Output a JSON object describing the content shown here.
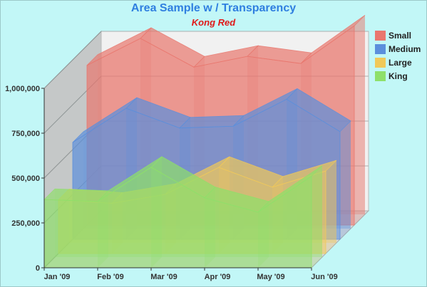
{
  "chart_data": {
    "type": "area",
    "title": "Area Sample w / Transparency",
    "subtitle": "Kong Red",
    "title_color": "#2f7fe0",
    "subtitle_color": "#e01818",
    "categories": [
      "Jan '09",
      "Feb '09",
      "Mar '09",
      "Apr '09",
      "May '09",
      "Jun '09"
    ],
    "y_ticks": [
      "0",
      "250,000",
      "500,000",
      "750,000",
      "1,000,000"
    ],
    "ylim": [
      0,
      1000000
    ],
    "grid": true,
    "three_d": true,
    "legend_position": "right",
    "series": [
      {
        "name": "Small",
        "color": "#e9776e",
        "values": [
          890000,
          1040000,
          880000,
          940000,
          900000,
          1110000
        ]
      },
      {
        "name": "Medium",
        "color": "#5b8fdc",
        "values": [
          540000,
          730000,
          620000,
          630000,
          780000,
          600000
        ]
      },
      {
        "name": "Large",
        "color": "#f0c95a",
        "values": [
          300000,
          280000,
          330000,
          480000,
          370000,
          460000
        ]
      },
      {
        "name": "King",
        "color": "#8ee06a",
        "values": [
          380000,
          370000,
          560000,
          390000,
          310000,
          510000
        ]
      }
    ]
  }
}
